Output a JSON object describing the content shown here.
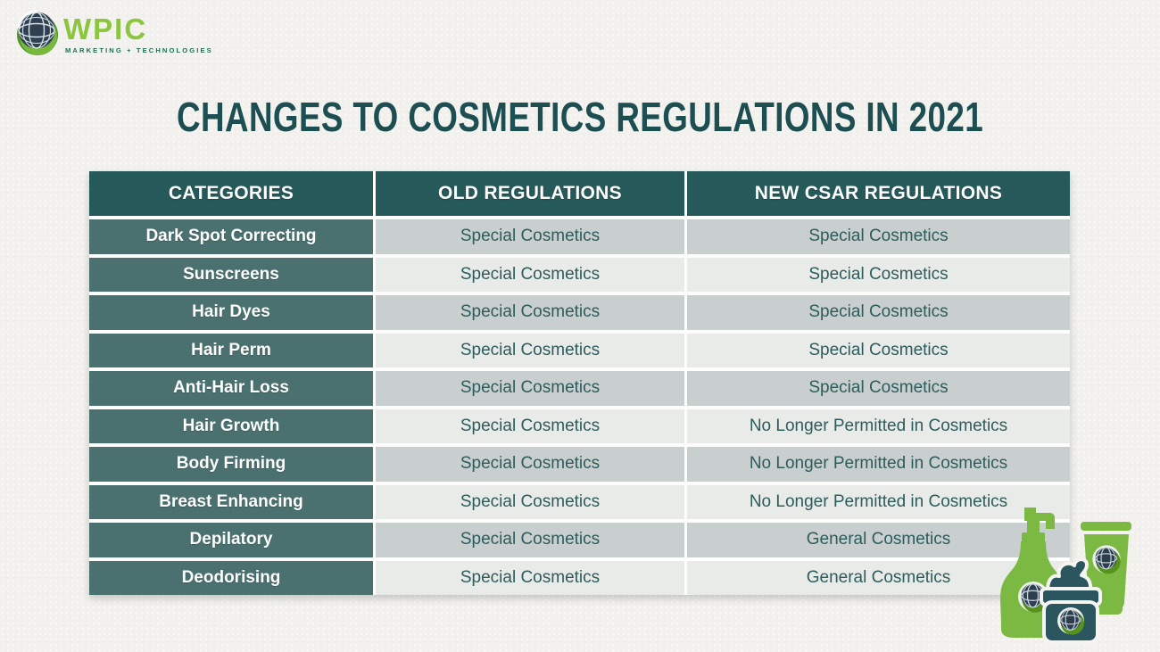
{
  "logo": {
    "brand": "WPIC",
    "tagline": "MARKETING + TECHNOLOGIES",
    "brand_color": "#8cc53f",
    "tagline_color": "#1e6e52",
    "globe_icon": "globe-icon"
  },
  "title": "CHANGES TO COSMETICS REGULATIONS IN 2021",
  "table": {
    "headers": [
      "CATEGORIES",
      "OLD REGULATIONS",
      "NEW CSAR REGULATIONS"
    ],
    "rows": [
      {
        "category": "Dark Spot Correcting",
        "old": "Special Cosmetics",
        "new": "Special Cosmetics"
      },
      {
        "category": "Sunscreens",
        "old": "Special Cosmetics",
        "new": "Special Cosmetics"
      },
      {
        "category": "Hair Dyes",
        "old": "Special Cosmetics",
        "new": "Special Cosmetics"
      },
      {
        "category": "Hair Perm",
        "old": "Special Cosmetics",
        "new": "Special Cosmetics"
      },
      {
        "category": "Anti-Hair Loss",
        "old": "Special Cosmetics",
        "new": "Special Cosmetics"
      },
      {
        "category": "Hair Growth",
        "old": "Special Cosmetics",
        "new": "No Longer Permitted in Cosmetics"
      },
      {
        "category": "Body Firming",
        "old": "Special Cosmetics",
        "new": "No Longer Permitted in Cosmetics"
      },
      {
        "category": "Breast Enhancing",
        "old": "Special Cosmetics",
        "new": "No Longer Permitted in Cosmetics"
      },
      {
        "category": "Depilatory",
        "old": "Special Cosmetics",
        "new": "General Cosmetics"
      },
      {
        "category": "Deodorising",
        "old": "Special Cosmetics",
        "new": "General Cosmetics"
      }
    ]
  },
  "illustration": {
    "icons": [
      "pump-bottle-icon",
      "cream-jar-icon",
      "tube-icon"
    ],
    "product_green": "#7cb942",
    "product_teal": "#2b5660"
  },
  "colors": {
    "background": "#f2f1ed",
    "title_text": "#1d4e52",
    "header_bg": "#26595a",
    "category_bg": "#4a7170",
    "row_shade_a": "#c9cfce",
    "row_shade_b": "#e9ebe9",
    "data_text": "#2d5c5c"
  }
}
